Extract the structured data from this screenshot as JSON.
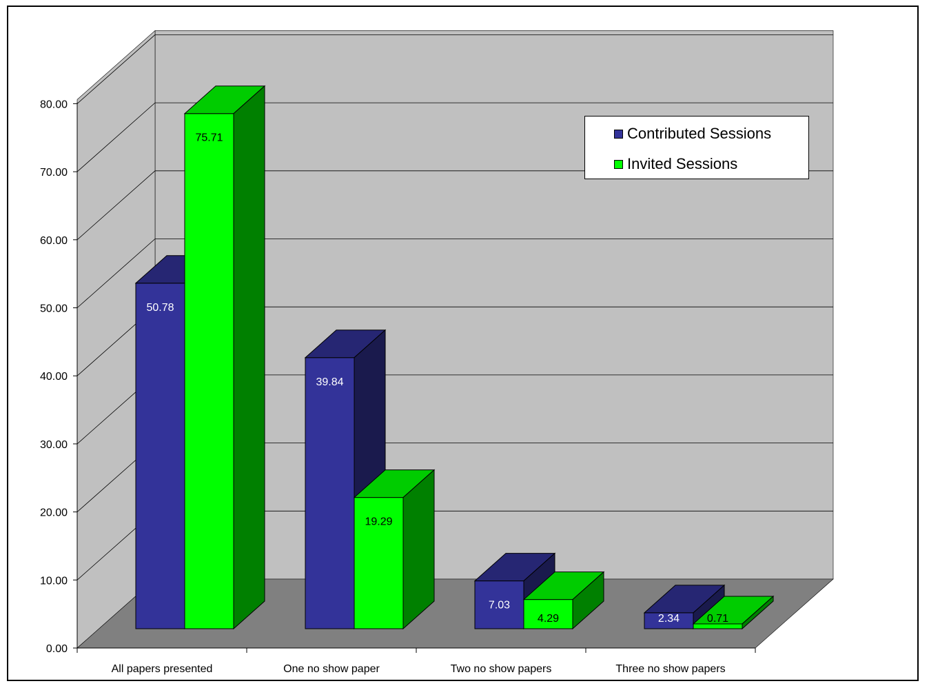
{
  "chart_data": {
    "type": "bar",
    "categories": [
      "All papers presented",
      "One no show paper",
      "Two no show papers",
      "Three no show papers"
    ],
    "series": [
      {
        "name": "Contributed Sessions",
        "values": [
          50.78,
          39.84,
          7.03,
          2.34
        ],
        "color": "#333399",
        "side_color": "#1a1a4d"
      },
      {
        "name": "Invited Sessions",
        "values": [
          75.71,
          19.29,
          4.29,
          0.71
        ],
        "color": "#00ff00",
        "side_color": "#008000"
      }
    ],
    "data_labels": [
      [
        "50.78",
        "39.84",
        "7.03",
        "2.34"
      ],
      [
        "75.71",
        "19.29",
        "4.29",
        "0.71"
      ]
    ],
    "y_ticks": [
      "0.00",
      "10.00",
      "20.00",
      "30.00",
      "40.00",
      "50.00",
      "60.00",
      "70.00",
      "80.00"
    ],
    "ylim": [
      0,
      80
    ],
    "title": "",
    "xlabel": "",
    "ylabel": "",
    "grid": true,
    "legend_position": "top-right",
    "wall_color": "#c0c0c0",
    "floor_color": "#808080"
  }
}
